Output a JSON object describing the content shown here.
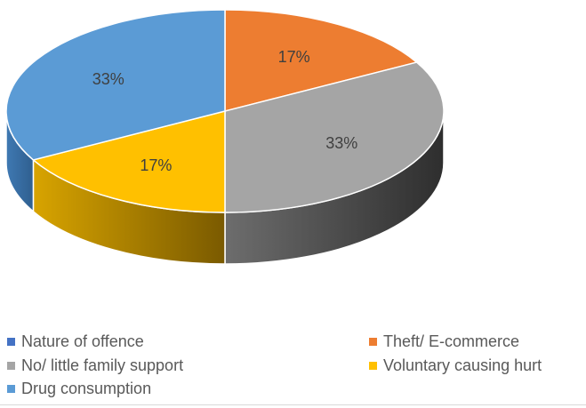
{
  "chart_data": {
    "type": "pie",
    "style": "3d",
    "categories": [
      "Nature of offence",
      "Theft/ E-commerce",
      "No/ little family support",
      "Voluntary causing hurt",
      "Drug consumption"
    ],
    "values": [
      0,
      17,
      33,
      17,
      33
    ],
    "value_labels": [
      "",
      "17%",
      "33%",
      "17%",
      "33%"
    ],
    "colors": [
      "#4472c4",
      "#ed7d31",
      "#a5a5a5",
      "#ffc000",
      "#5b9bd5"
    ],
    "legend_position": "bottom"
  }
}
